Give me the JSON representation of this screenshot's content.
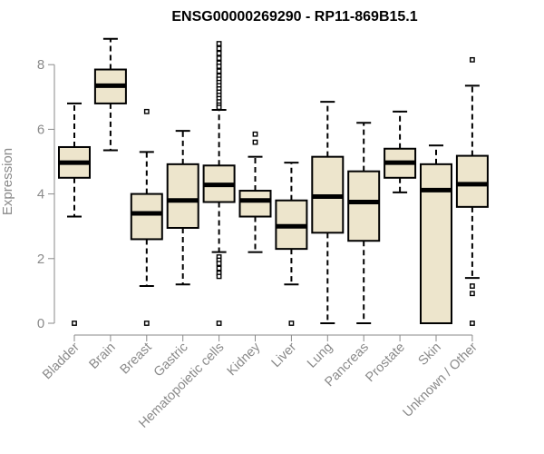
{
  "chart_data": {
    "type": "boxplot",
    "title": "ENSG00000269290 - RP11-869B15.1",
    "xlabel": "",
    "ylabel": "Expression",
    "ylim": [
      0,
      8.7
    ],
    "yticks": [
      0,
      2,
      4,
      6,
      8
    ],
    "grid": false,
    "box_fill": "#ede5cc",
    "box_stroke": "#000000",
    "categories": [
      "Bladder",
      "Brain",
      "Breast",
      "Gastric",
      "Hematopoietic cells",
      "Kidney",
      "Liver",
      "Lung",
      "Pancreas",
      "Prostate",
      "Skin",
      "Unknown / Other"
    ],
    "boxes": [
      {
        "name": "Bladder",
        "whisker_low": 3.3,
        "q1": 4.5,
        "median": 4.97,
        "q3": 5.45,
        "whisker_high": 6.8,
        "outliers": [
          0
        ]
      },
      {
        "name": "Brain",
        "whisker_low": 5.35,
        "q1": 6.8,
        "median": 7.35,
        "q3": 7.85,
        "whisker_high": 8.8,
        "outliers": []
      },
      {
        "name": "Breast",
        "whisker_low": 1.15,
        "q1": 2.6,
        "median": 3.4,
        "q3": 4.0,
        "whisker_high": 5.3,
        "outliers": [
          6.55,
          0
        ]
      },
      {
        "name": "Gastric",
        "whisker_low": 1.2,
        "q1": 2.95,
        "median": 3.8,
        "q3": 4.92,
        "whisker_high": 5.95,
        "outliers": []
      },
      {
        "name": "Hematopoietic cells",
        "whisker_low": 2.2,
        "q1": 3.75,
        "median": 4.28,
        "q3": 4.88,
        "whisker_high": 6.6,
        "outliers": [
          8.65,
          8.5,
          8.35,
          8.2,
          8.05,
          7.95,
          7.8,
          7.65,
          7.55,
          7.45,
          7.35,
          7.25,
          7.15,
          7.05,
          6.95,
          6.85,
          6.75,
          6.68,
          2.05,
          1.95,
          1.85,
          1.7,
          1.55,
          1.45,
          0
        ]
      },
      {
        "name": "Kidney",
        "whisker_low": 2.2,
        "q1": 3.3,
        "median": 3.8,
        "q3": 4.1,
        "whisker_high": 5.15,
        "outliers": [
          5.85,
          5.6
        ]
      },
      {
        "name": "Liver",
        "whisker_low": 1.2,
        "q1": 2.3,
        "median": 3.0,
        "q3": 3.8,
        "whisker_high": 4.97,
        "outliers": [
          0
        ]
      },
      {
        "name": "Lung",
        "whisker_low": 0.0,
        "q1": 2.8,
        "median": 3.92,
        "q3": 5.15,
        "whisker_high": 6.85,
        "outliers": []
      },
      {
        "name": "Pancreas",
        "whisker_low": 0.0,
        "q1": 2.55,
        "median": 3.75,
        "q3": 4.7,
        "whisker_high": 6.2,
        "outliers": []
      },
      {
        "name": "Prostate",
        "whisker_low": 4.05,
        "q1": 4.5,
        "median": 4.97,
        "q3": 5.4,
        "whisker_high": 6.55,
        "outliers": []
      },
      {
        "name": "Skin",
        "whisker_low": 0.0,
        "q1": 0.0,
        "median": 4.12,
        "q3": 4.92,
        "whisker_high": 5.5,
        "outliers": []
      },
      {
        "name": "Unknown / Other",
        "whisker_low": 1.4,
        "q1": 3.6,
        "median": 4.3,
        "q3": 5.18,
        "whisker_high": 7.35,
        "outliers": [
          8.15,
          1.15,
          0.92,
          0
        ]
      }
    ]
  }
}
